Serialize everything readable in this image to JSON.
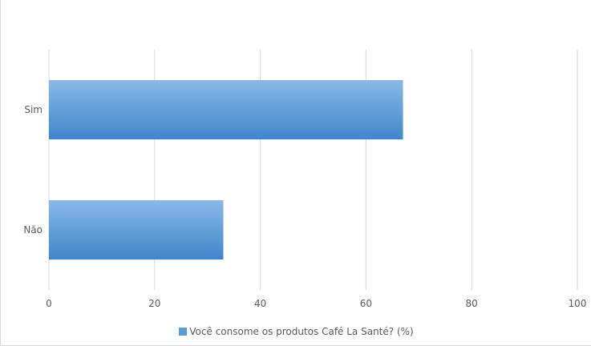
{
  "chart_data": {
    "type": "bar",
    "orientation": "horizontal",
    "title": "",
    "categories": [
      "Sim",
      "Não"
    ],
    "series": [
      {
        "name": "Você consome os produtos Café La Santé? (%)",
        "values": [
          67,
          33
        ]
      }
    ],
    "xlabel": "",
    "ylabel": "",
    "xlim": [
      0,
      100
    ],
    "x_ticks": [
      "0",
      "20",
      "40",
      "60",
      "80",
      "100"
    ],
    "grid": true,
    "legend": "bottom",
    "colors": {
      "bar_top": "#8ab9e6",
      "bar_bottom": "#3f86cc",
      "grid": "#d9d9d9"
    }
  }
}
